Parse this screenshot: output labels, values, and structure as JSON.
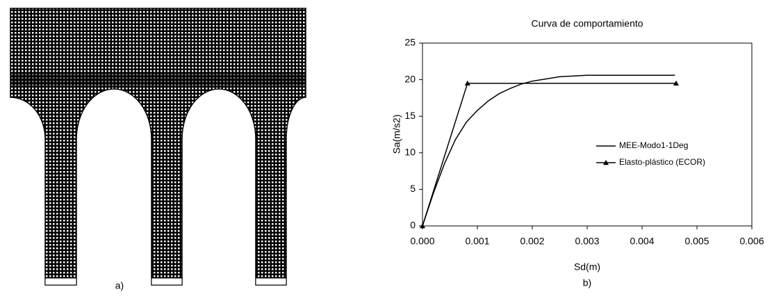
{
  "panel_a": {
    "caption": "a)"
  },
  "chart_data": {
    "type": "line",
    "title": "Curva de comportamiento",
    "caption": "b)",
    "xlabel": "Sd(m)",
    "ylabel": "Sa(m/s2)",
    "xlim": [
      0,
      0.006
    ],
    "ylim": [
      0,
      25
    ],
    "xticks": [
      {
        "value": 0,
        "label": "0.000"
      },
      {
        "value": 0.001,
        "label": "0.001"
      },
      {
        "value": 0.002,
        "label": "0.002"
      },
      {
        "value": 0.003,
        "label": "0.003"
      },
      {
        "value": 0.004,
        "label": "0.004"
      },
      {
        "value": 0.005,
        "label": "0.005"
      },
      {
        "value": 0.006,
        "label": "0.006"
      }
    ],
    "yticks": [
      0,
      5,
      10,
      15,
      20,
      25
    ],
    "legend": "right",
    "series": [
      {
        "name": "MEE-Modo1-1Deg",
        "color": "#000000",
        "x": [
          0,
          0.0002,
          0.0004,
          0.0006,
          0.0008,
          0.001,
          0.0012,
          0.0014,
          0.0016,
          0.0018,
          0.002,
          0.0025,
          0.003,
          0.0035,
          0.004,
          0.0046
        ],
        "values": [
          0,
          4.5,
          8.5,
          11.8,
          14.2,
          15.8,
          17.1,
          18.1,
          18.8,
          19.4,
          19.8,
          20.4,
          20.6,
          20.6,
          20.6,
          20.6
        ]
      },
      {
        "name": "Elasto-plástico (ECOR)",
        "color": "#000000",
        "marker": "triangle",
        "x": [
          0,
          0.00082,
          0.00462
        ],
        "values": [
          0,
          19.5,
          19.5
        ]
      }
    ]
  }
}
